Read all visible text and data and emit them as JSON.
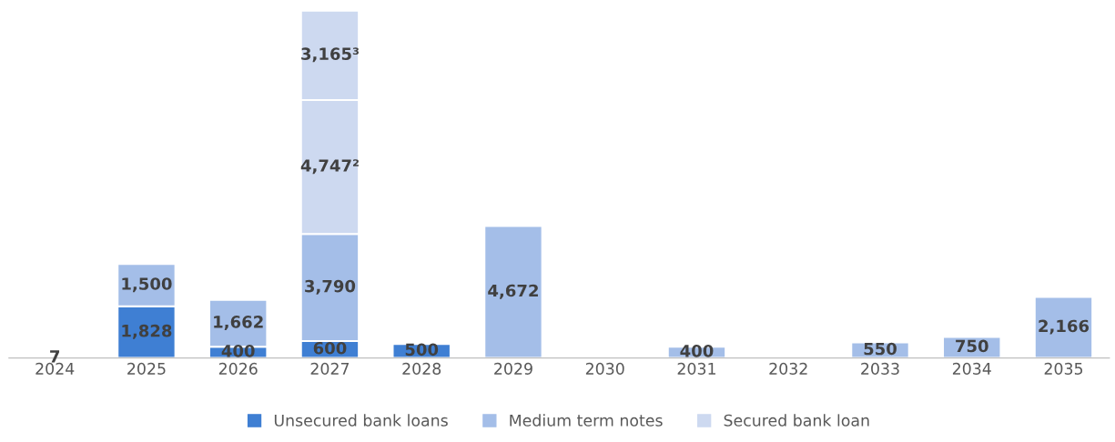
{
  "chart_data": {
    "type": "bar",
    "stacked": true,
    "categories": [
      "2024",
      "2025",
      "2026",
      "2027",
      "2028",
      "2029",
      "2030",
      "2031",
      "2032",
      "2033",
      "2034",
      "2035"
    ],
    "series": [
      {
        "name": "Unsecured bank loans",
        "color": "#3f7fd3",
        "values": [
          7,
          1828,
          400,
          600,
          500,
          null,
          null,
          null,
          null,
          null,
          null,
          null
        ],
        "value_labels": [
          "7",
          "1,828",
          "400",
          "600",
          "500",
          null,
          null,
          null,
          null,
          null,
          null,
          null
        ]
      },
      {
        "name": "Medium term notes",
        "color": "#a4bee8",
        "values": [
          null,
          1500,
          1662,
          3790,
          null,
          4672,
          null,
          400,
          null,
          550,
          750,
          2166
        ],
        "value_labels": [
          null,
          "1,500",
          "1,662",
          "3,790",
          null,
          "4,672",
          null,
          "400",
          null,
          "550",
          "750",
          "2,166"
        ]
      },
      {
        "name": "Secured bank loan",
        "color": "#cdd9f0",
        "values": [
          null,
          null,
          null,
          4747,
          null,
          null,
          null,
          null,
          null,
          null,
          null,
          null
        ],
        "value_labels": [
          null,
          null,
          null,
          "4,747²",
          null,
          null,
          null,
          null,
          null,
          null,
          null,
          null
        ]
      },
      {
        "color": "#cdd9f0",
        "values": [
          null,
          null,
          null,
          3165,
          null,
          null,
          null,
          null,
          null,
          null,
          null,
          null
        ],
        "value_labels": [
          null,
          null,
          null,
          "3,165³",
          null,
          null,
          null,
          null,
          null,
          null,
          null,
          null
        ]
      }
    ],
    "tick_labels": "x",
    "grid": false,
    "legend": "bottom"
  }
}
